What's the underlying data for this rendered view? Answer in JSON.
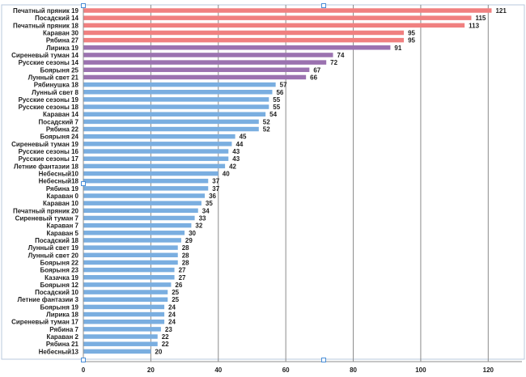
{
  "chart_data": {
    "type": "bar",
    "orientation": "horizontal",
    "categories": [
      "Печатный пряник 19",
      "Посадский 14",
      "Печатный пряник 18",
      "Караван 30",
      "Рябина 27",
      "Лирика 19",
      "Сиреневый туман 14",
      "Русские сезоны 14",
      "Боярыня 25",
      "Лунный свет 21",
      "Рябинушка 18",
      "Лунный свет 8",
      "Русские сезоны 19",
      "Русские сезоны 18",
      "Караван 14",
      "Посадский 7",
      "Рябина 22",
      "Боярыня 24",
      "Сиреневый туман 19",
      "Русские сезоны 16",
      "Русские сезоны 17",
      "Летние фантазии 18",
      "Небесный10",
      "Небесный18",
      "Рябина 19",
      "Караван 0",
      "Караван 10",
      "Печатный пряник 20",
      "Сиреневый туман 7",
      "Караван 7",
      "Караван 5",
      "Посадский 18",
      "Лунный свет 19",
      "Лунный свет 20",
      "Боярыня 22",
      "Боярыня 23",
      "Казачка 19",
      "Боярыня 12",
      "Посадский 10",
      "Летние фантазии  3",
      "Боярыня 19",
      "Лирика 18",
      "Сиреневый туман 17",
      "Рябина 7",
      "Караван 2",
      "Рябина 21",
      "Небесный13"
    ],
    "values": [
      121,
      115,
      113,
      95,
      95,
      91,
      74,
      72,
      67,
      66,
      57,
      56,
      55,
      55,
      54,
      52,
      52,
      45,
      44,
      43,
      43,
      42,
      40,
      37,
      37,
      36,
      35,
      34,
      33,
      32,
      30,
      29,
      28,
      28,
      28,
      27,
      27,
      26,
      25,
      25,
      24,
      24,
      24,
      23,
      22,
      22,
      20
    ],
    "colors": {
      "salmon": "#f08080",
      "purple": "#9b72b0",
      "blue": "#7aaee0"
    },
    "bar_color_groups": [
      {
        "color": "salmon",
        "count": 5
      },
      {
        "color": "purple",
        "count": 5
      },
      {
        "color": "blue",
        "count": 37
      }
    ],
    "xlim": [
      0,
      130
    ],
    "xticks": [
      0,
      20,
      40,
      60,
      80,
      100,
      120
    ],
    "grid": true,
    "data_labels": true,
    "title": "",
    "xlabel": "",
    "ylabel": ""
  }
}
